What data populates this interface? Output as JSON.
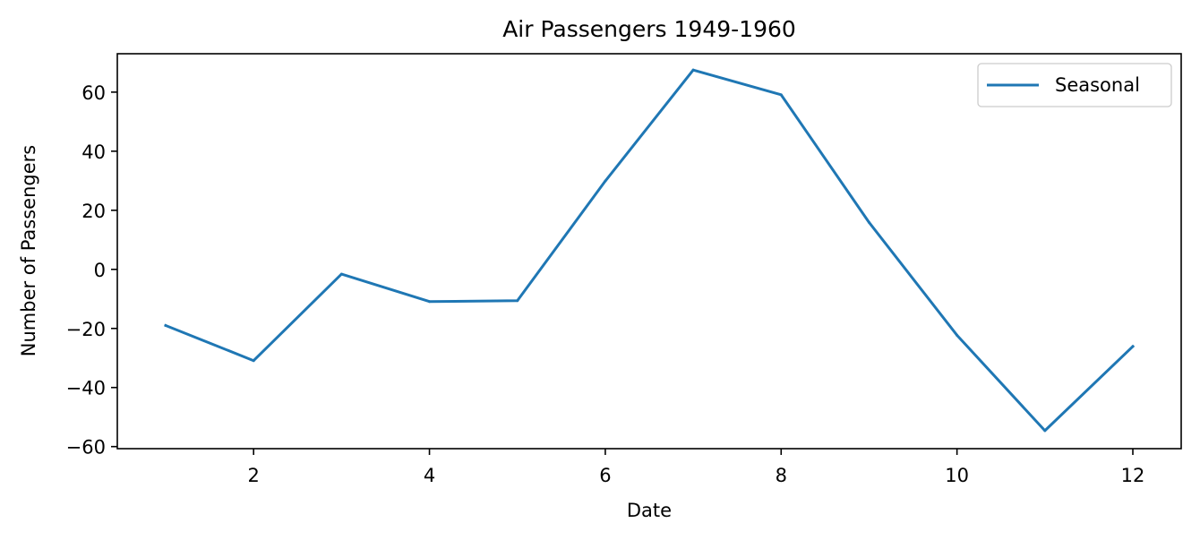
{
  "chart_data": {
    "type": "line",
    "title": "Air Passengers 1949-1960",
    "xlabel": "Date",
    "ylabel": "Number of Passengers",
    "x": [
      1,
      2,
      3,
      4,
      5,
      6,
      7,
      8,
      9,
      10,
      11,
      12
    ],
    "series": [
      {
        "name": "Seasonal",
        "color": "#1f77b4",
        "values": [
          -19.0,
          -30.9,
          -1.6,
          -10.9,
          -10.6,
          29.9,
          67.5,
          59.1,
          15.9,
          -22.3,
          -54.6,
          -26.1
        ]
      }
    ],
    "xlim": [
      0.45,
      12.55
    ],
    "ylim": [
      -60.7,
      73.0
    ],
    "xticks": [
      2,
      4,
      6,
      8,
      10,
      12
    ],
    "yticks": [
      -60,
      -40,
      -20,
      0,
      20,
      40,
      60
    ],
    "xtick_labels": [
      "2",
      "4",
      "6",
      "8",
      "10",
      "12"
    ],
    "ytick_labels": [
      "−60",
      "−40",
      "−20",
      "0",
      "20",
      "40",
      "60"
    ],
    "grid": false,
    "legend_position": "top-right"
  }
}
